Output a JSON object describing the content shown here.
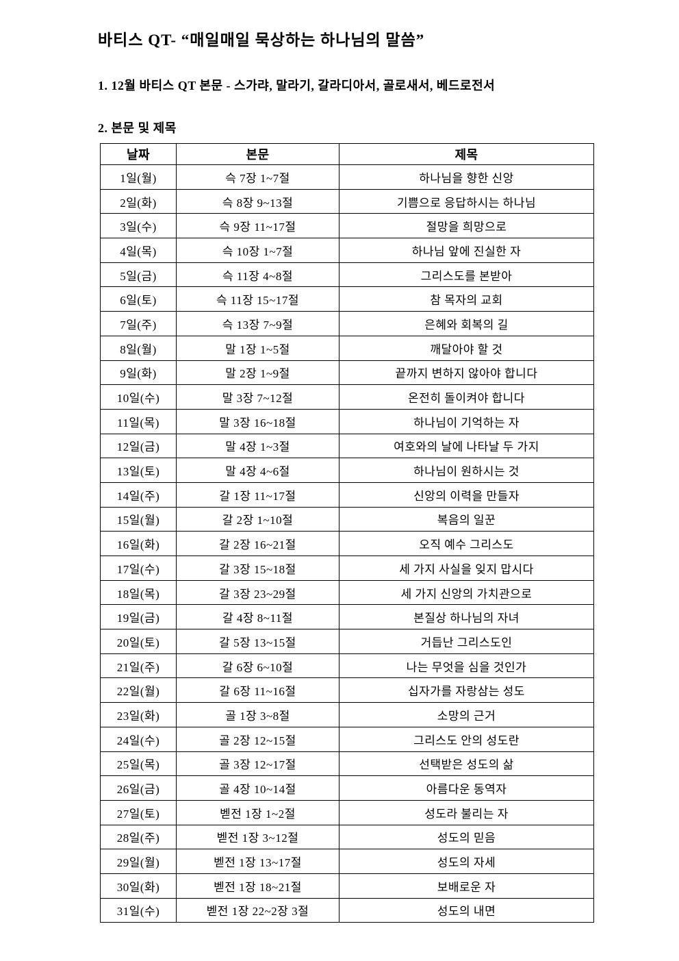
{
  "page": {
    "title": "바티스 QT- “매일매일 묵상하는 하나님의 말씀”",
    "item1": "1. 12월 바티스 QT 본문 - 스가랴, 말라기, 갈라디아서, 골로새서, 베드로전서",
    "item2": "2. 본문 및 제목"
  },
  "table": {
    "headers": [
      "날짜",
      "본문",
      "제목"
    ],
    "rows": [
      {
        "date": "1일(월)",
        "passage": "슥 7장 1~7절",
        "title": "하나님을 향한 신앙"
      },
      {
        "date": "2일(화)",
        "passage": "슥 8장 9~13절",
        "title": "기쁨으로 응답하시는 하나님"
      },
      {
        "date": "3일(수)",
        "passage": "슥 9장 11~17절",
        "title": "절망을 희망으로"
      },
      {
        "date": "4일(목)",
        "passage": "슥 10장 1~7절",
        "title": "하나님 앞에 진실한 자"
      },
      {
        "date": "5일(금)",
        "passage": "슥 11장 4~8절",
        "title": "그리스도를 본받아"
      },
      {
        "date": "6일(토)",
        "passage": "슥 11장 15~17절",
        "title": "참 목자의 교회"
      },
      {
        "date": "7일(주)",
        "passage": "슥 13장 7~9절",
        "title": "은혜와 회복의 길"
      },
      {
        "date": "8일(월)",
        "passage": "말 1장 1~5절",
        "title": "깨달아야 할 것"
      },
      {
        "date": "9일(화)",
        "passage": "말 2장 1~9절",
        "title": "끝까지 변하지 않아야 합니다"
      },
      {
        "date": "10일(수)",
        "passage": "말 3장 7~12절",
        "title": "온전히 돌이켜야 합니다"
      },
      {
        "date": "11일(목)",
        "passage": "말 3장 16~18절",
        "title": "하나님이 기억하는 자"
      },
      {
        "date": "12일(금)",
        "passage": "말 4장 1~3절",
        "title": "여호와의 날에 나타날 두 가지"
      },
      {
        "date": "13일(토)",
        "passage": "말 4장 4~6절",
        "title": "하나님이 원하시는 것"
      },
      {
        "date": "14일(주)",
        "passage": "갈 1장 11~17절",
        "title": "신앙의 이력을 만들자"
      },
      {
        "date": "15일(월)",
        "passage": "갈 2장 1~10절",
        "title": "복음의 일꾼"
      },
      {
        "date": "16일(화)",
        "passage": "갈 2장 16~21절",
        "title": "오직 예수 그리스도"
      },
      {
        "date": "17일(수)",
        "passage": "갈 3장 15~18절",
        "title": "세 가지 사실을 잊지 맙시다"
      },
      {
        "date": "18일(목)",
        "passage": "갈 3장 23~29절",
        "title": "세 가지 신앙의 가치관으로"
      },
      {
        "date": "19일(금)",
        "passage": "갈 4장 8~11절",
        "title": "본질상 하나님의 자녀"
      },
      {
        "date": "20일(토)",
        "passage": "갈 5장 13~15절",
        "title": "거듭난 그리스도인"
      },
      {
        "date": "21일(주)",
        "passage": "갈 6장 6~10절",
        "title": "나는 무엇을 심을 것인가"
      },
      {
        "date": "22일(월)",
        "passage": "갈 6장 11~16절",
        "title": "십자가를 자랑삼는 성도"
      },
      {
        "date": "23일(화)",
        "passage": "골 1장 3~8절",
        "title": "소망의 근거"
      },
      {
        "date": "24일(수)",
        "passage": "골 2장 12~15절",
        "title": "그리스도 안의 성도란"
      },
      {
        "date": "25일(목)",
        "passage": "골 3장 12~17절",
        "title": "선택받은 성도의 삶"
      },
      {
        "date": "26일(금)",
        "passage": "골 4장 10~14절",
        "title": "아름다운 동역자"
      },
      {
        "date": "27일(토)",
        "passage": "벧전 1장 1~2절",
        "title": "성도라 불리는 자"
      },
      {
        "date": "28일(주)",
        "passage": "벧전 1장 3~12절",
        "title": "성도의 믿음"
      },
      {
        "date": "29일(월)",
        "passage": "벧전 1장 13~17절",
        "title": "성도의 자세"
      },
      {
        "date": "30일(화)",
        "passage": "벧전 1장 18~21절",
        "title": "보배로운 자"
      },
      {
        "date": "31일(수)",
        "passage": "벧전 1장 22~2장 3절",
        "title": "성도의 내면"
      }
    ]
  }
}
